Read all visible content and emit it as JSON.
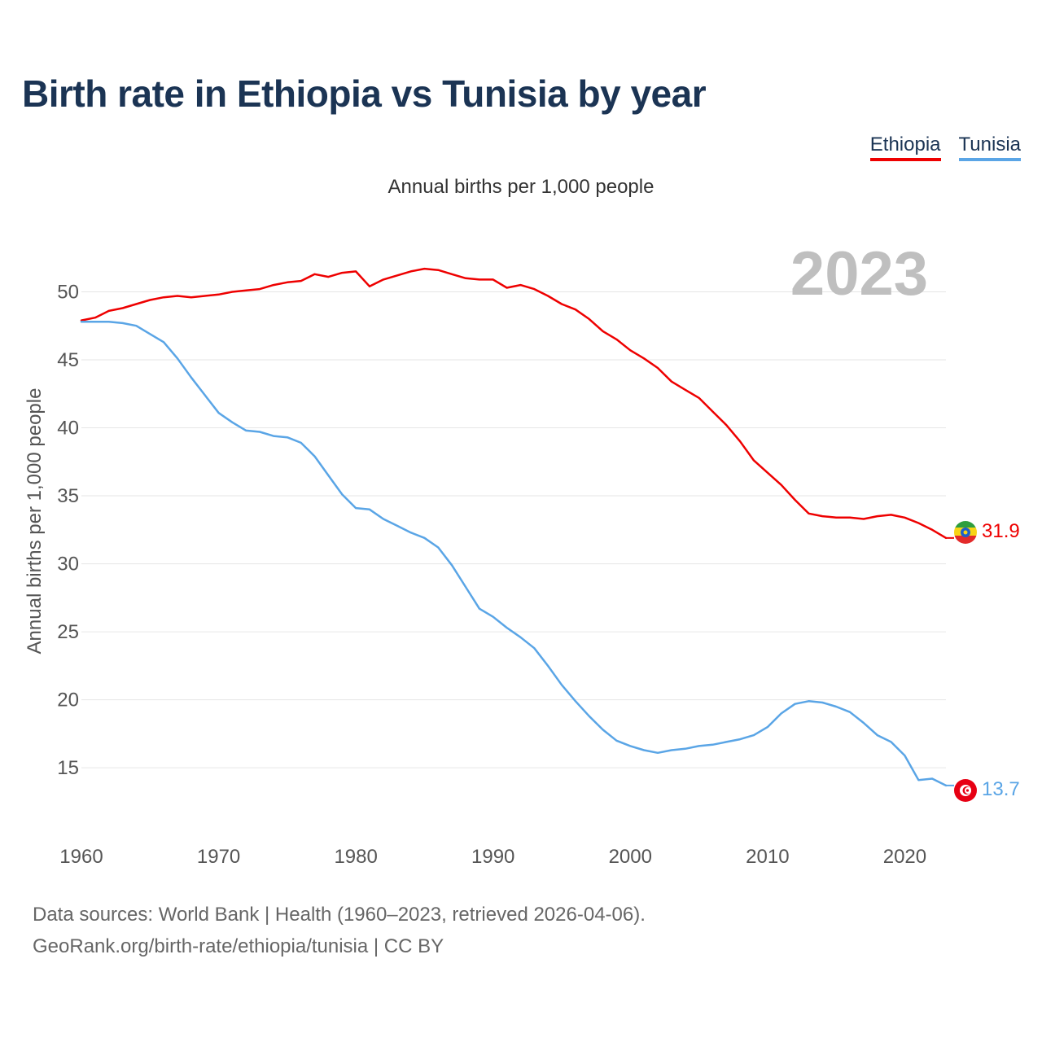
{
  "title": "Birth rate in Ethiopia vs Tunisia by year",
  "subtitle": "Annual births per 1,000 people",
  "legend": [
    {
      "label": "Ethiopia",
      "color": "#ee0000"
    },
    {
      "label": "Tunisia",
      "color": "#5aa5e6"
    }
  ],
  "footer": {
    "line1": "Data sources: World Bank | Health (1960–2023, retrieved 2026-04-06).",
    "line2": "GeoRank.org/birth-rate/ethiopia/tunisia | CC BY"
  },
  "chart_data": {
    "type": "line",
    "title": "Birth rate in Ethiopia vs Tunisia by year",
    "ylabel": "Annual births per 1,000 people",
    "xlabel": "",
    "year_label": "2023",
    "xlim": [
      1960,
      2023
    ],
    "ylim": [
      11,
      53.5
    ],
    "x_ticks": [
      1960,
      1970,
      1980,
      1990,
      2000,
      2010,
      2020
    ],
    "y_ticks": [
      15,
      20,
      25,
      30,
      35,
      40,
      45,
      50
    ],
    "grid": true,
    "x": [
      1960,
      1961,
      1962,
      1963,
      1964,
      1965,
      1966,
      1967,
      1968,
      1969,
      1970,
      1971,
      1972,
      1973,
      1974,
      1975,
      1976,
      1977,
      1978,
      1979,
      1980,
      1981,
      1982,
      1983,
      1984,
      1985,
      1986,
      1987,
      1988,
      1989,
      1990,
      1991,
      1992,
      1993,
      1994,
      1995,
      1996,
      1997,
      1998,
      1999,
      2000,
      2001,
      2002,
      2003,
      2004,
      2005,
      2006,
      2007,
      2008,
      2009,
      2010,
      2011,
      2012,
      2013,
      2014,
      2015,
      2016,
      2017,
      2018,
      2019,
      2020,
      2021,
      2022,
      2023
    ],
    "series": [
      {
        "name": "Ethiopia",
        "color": "#ee0000",
        "end_label": "31.9",
        "values": [
          47.9,
          48.1,
          48.6,
          48.8,
          49.1,
          49.4,
          49.6,
          49.7,
          49.6,
          49.7,
          49.8,
          50.0,
          50.1,
          50.2,
          50.5,
          50.7,
          50.8,
          51.3,
          51.1,
          51.4,
          51.5,
          50.4,
          50.9,
          51.2,
          51.5,
          51.7,
          51.6,
          51.3,
          51.0,
          50.9,
          50.9,
          50.3,
          50.5,
          50.2,
          49.7,
          49.1,
          48.7,
          48.0,
          47.1,
          46.5,
          45.7,
          45.1,
          44.4,
          43.4,
          42.8,
          42.2,
          41.2,
          40.2,
          39.0,
          37.6,
          36.7,
          35.8,
          34.7,
          33.7,
          33.5,
          33.4,
          33.4,
          33.3,
          33.5,
          33.6,
          33.4,
          33.0,
          32.5,
          31.9
        ]
      },
      {
        "name": "Tunisia",
        "color": "#5aa5e6",
        "end_label": "13.7",
        "values": [
          47.8,
          47.8,
          47.8,
          47.7,
          47.5,
          46.9,
          46.3,
          45.1,
          43.7,
          42.4,
          41.1,
          40.4,
          39.8,
          39.7,
          39.4,
          39.3,
          38.9,
          37.9,
          36.5,
          35.1,
          34.1,
          34.0,
          33.3,
          32.8,
          32.3,
          31.9,
          31.2,
          29.9,
          28.3,
          26.7,
          26.1,
          25.3,
          24.6,
          23.8,
          22.5,
          21.1,
          19.9,
          18.8,
          17.8,
          17.0,
          16.6,
          16.3,
          16.1,
          16.3,
          16.4,
          16.6,
          16.7,
          16.9,
          17.1,
          17.4,
          18.0,
          19.0,
          19.7,
          19.9,
          19.8,
          19.5,
          19.1,
          18.3,
          17.4,
          16.9,
          15.9,
          14.1,
          14.2,
          13.7
        ]
      }
    ]
  }
}
